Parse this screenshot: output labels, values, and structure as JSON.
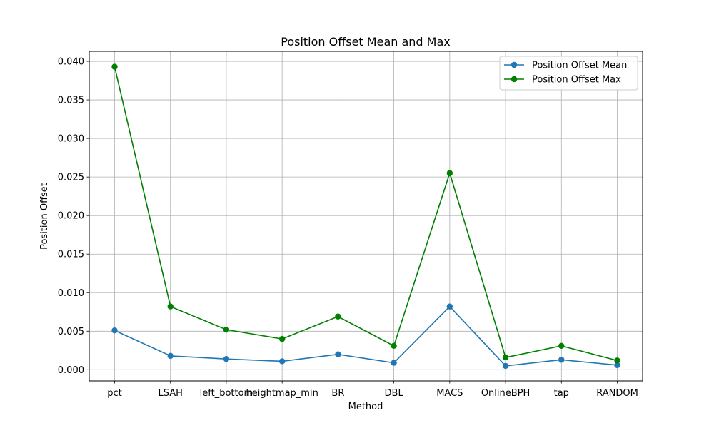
{
  "chart_data": {
    "type": "line",
    "title": "Position Offset Mean and Max",
    "xlabel": "Method",
    "ylabel": "Position Offset",
    "categories": [
      "pct",
      "LSAH",
      "left_bottom",
      "heightmap_min",
      "BR",
      "DBL",
      "MACS",
      "OnlineBPH",
      "tap",
      "RANDOM"
    ],
    "ylim": [
      -0.00145,
      0.0413
    ],
    "yticks": [
      0.0,
      0.005,
      0.01,
      0.015,
      0.02,
      0.025,
      0.03,
      0.035,
      0.04
    ],
    "ytick_labels": [
      "0.000",
      "0.005",
      "0.010",
      "0.015",
      "0.020",
      "0.025",
      "0.030",
      "0.035",
      "0.040"
    ],
    "grid": true,
    "legend_position": "top-right",
    "series": [
      {
        "name": "Position Offset Mean",
        "color": "#1f77b4",
        "marker": "circle",
        "values": [
          0.0051,
          0.0018,
          0.0014,
          0.0011,
          0.002,
          0.0009,
          0.0082,
          0.0005,
          0.0013,
          0.0006
        ]
      },
      {
        "name": "Position Offset Max",
        "color": "#008000",
        "marker": "circle",
        "values": [
          0.0393,
          0.0082,
          0.0052,
          0.004,
          0.0069,
          0.0031,
          0.0255,
          0.0016,
          0.0031,
          0.0012
        ]
      }
    ]
  }
}
